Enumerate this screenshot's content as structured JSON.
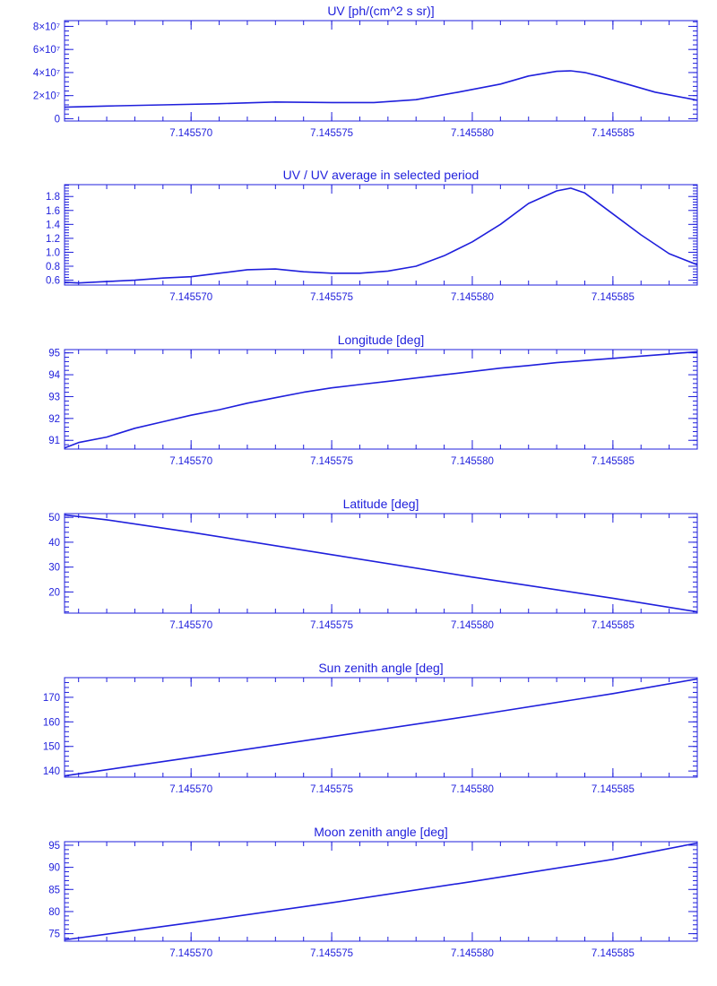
{
  "colors": {
    "line": "#1f1fdc",
    "axes": "#1f1fdc",
    "background": "#ffffff"
  },
  "chart_data": [
    {
      "type": "line",
      "title": "UV [ph/(cm^2 s sr)]",
      "xlim": [
        7.1455655,
        7.145588
      ],
      "x_ticks": [
        7.14557,
        7.145575,
        7.14558,
        7.145585
      ],
      "x_tick_labels": [
        "7.145570",
        "7.145575",
        "7.145580",
        "7.145585"
      ],
      "ylim": [
        -2000000.0,
        85000000.0
      ],
      "y_ticks": [
        0,
        20000000.0,
        40000000.0,
        60000000.0,
        80000000.0
      ],
      "y_tick_labels": [
        "0",
        "2×10⁷",
        "4×10⁷",
        "6×10⁷",
        "8×10⁷"
      ],
      "series": [
        {
          "x": [
            7.1455655,
            7.145567,
            7.145569,
            7.145571,
            7.145573,
            7.145575,
            7.1455765,
            7.145578,
            7.1455795,
            7.145581,
            7.145582,
            7.145583,
            7.1455835,
            7.145584,
            7.1455845,
            7.1455855,
            7.1455865,
            7.145588
          ],
          "y": [
            10000000.0,
            11000000.0,
            12000000.0,
            13000000.0,
            14500000.0,
            14000000.0,
            14000000.0,
            16500000.0,
            23000000.0,
            30000000.0,
            37000000.0,
            41000000.0,
            41500000.0,
            40000000.0,
            37000000.0,
            30000000.0,
            23000000.0,
            16000000.0
          ]
        }
      ]
    },
    {
      "type": "line",
      "title": "UV / UV average in selected period",
      "xlim": [
        7.1455655,
        7.145588
      ],
      "x_ticks": [
        7.14557,
        7.145575,
        7.14558,
        7.145585
      ],
      "x_tick_labels": [
        "7.145570",
        "7.145575",
        "7.145580",
        "7.145585"
      ],
      "ylim": [
        0.53,
        1.97
      ],
      "y_ticks": [
        0.6,
        0.8,
        1.0,
        1.2,
        1.4,
        1.6,
        1.8
      ],
      "y_tick_labels": [
        "0.6",
        "0.8",
        "1.0",
        "1.2",
        "1.4",
        "1.6",
        "1.8"
      ],
      "series": [
        {
          "x": [
            7.1455655,
            7.145566,
            7.145567,
            7.145568,
            7.145569,
            7.14557,
            7.145571,
            7.145572,
            7.145573,
            7.145574,
            7.145575,
            7.145576,
            7.145577,
            7.145578,
            7.145579,
            7.14558,
            7.145581,
            7.145582,
            7.145583,
            7.1455835,
            7.145584,
            7.145585,
            7.145586,
            7.145587,
            7.145588
          ],
          "y": [
            0.57,
            0.56,
            0.58,
            0.6,
            0.63,
            0.65,
            0.7,
            0.75,
            0.76,
            0.72,
            0.7,
            0.7,
            0.73,
            0.8,
            0.95,
            1.15,
            1.4,
            1.7,
            1.88,
            1.92,
            1.85,
            1.55,
            1.25,
            0.98,
            0.82
          ]
        }
      ]
    },
    {
      "type": "line",
      "title": "Longitude [deg]",
      "xlim": [
        7.1455655,
        7.145588
      ],
      "x_ticks": [
        7.14557,
        7.145575,
        7.14558,
        7.145585
      ],
      "x_tick_labels": [
        "7.145570",
        "7.145575",
        "7.145580",
        "7.145585"
      ],
      "ylim": [
        90.6,
        95.15
      ],
      "y_ticks": [
        91,
        92,
        93,
        94,
        95
      ],
      "y_tick_labels": [
        "91",
        "92",
        "93",
        "94",
        "95"
      ],
      "series": [
        {
          "x": [
            7.1455655,
            7.145566,
            7.145567,
            7.145568,
            7.145569,
            7.14557,
            7.145571,
            7.145572,
            7.145573,
            7.145574,
            7.145575,
            7.145576,
            7.145577,
            7.145578,
            7.145579,
            7.14558,
            7.145581,
            7.145582,
            7.145583,
            7.145584,
            7.145585,
            7.145586,
            7.145587,
            7.145588
          ],
          "y": [
            90.65,
            90.9,
            91.15,
            91.55,
            91.85,
            92.15,
            92.4,
            92.7,
            92.95,
            93.2,
            93.4,
            93.55,
            93.7,
            93.85,
            94.0,
            94.15,
            94.3,
            94.42,
            94.55,
            94.65,
            94.75,
            94.85,
            94.95,
            95.05
          ]
        }
      ]
    },
    {
      "type": "line",
      "title": "Latitude [deg]",
      "xlim": [
        7.1455655,
        7.145588
      ],
      "x_ticks": [
        7.14557,
        7.145575,
        7.14558,
        7.145585
      ],
      "x_tick_labels": [
        "7.145570",
        "7.145575",
        "7.145580",
        "7.145585"
      ],
      "ylim": [
        11.5,
        51.5
      ],
      "y_ticks": [
        20,
        30,
        40,
        50
      ],
      "y_tick_labels": [
        "20",
        "30",
        "40",
        "50"
      ],
      "series": [
        {
          "x": [
            7.1455655,
            7.145567,
            7.14557,
            7.145575,
            7.14558,
            7.145585,
            7.145588
          ],
          "y": [
            51.0,
            49.0,
            44.0,
            35.0,
            26.0,
            17.5,
            12.0
          ]
        }
      ]
    },
    {
      "type": "line",
      "title": "Sun zenith angle [deg]",
      "xlim": [
        7.1455655,
        7.145588
      ],
      "x_ticks": [
        7.14557,
        7.145575,
        7.14558,
        7.145585
      ],
      "x_tick_labels": [
        "7.145570",
        "7.145575",
        "7.145580",
        "7.145585"
      ],
      "ylim": [
        137.5,
        178
      ],
      "y_ticks": [
        140,
        150,
        160,
        170
      ],
      "y_tick_labels": [
        "140",
        "150",
        "160",
        "170"
      ],
      "series": [
        {
          "x": [
            7.1455655,
            7.14557,
            7.145575,
            7.14558,
            7.145585,
            7.145588
          ],
          "y": [
            138.0,
            145.5,
            154.0,
            162.5,
            171.5,
            177.5
          ]
        }
      ]
    },
    {
      "type": "line",
      "title": "Moon zenith angle [deg]",
      "xlim": [
        7.1455655,
        7.145588
      ],
      "x_ticks": [
        7.14557,
        7.145575,
        7.14558,
        7.145585
      ],
      "x_tick_labels": [
        "7.145570",
        "7.145575",
        "7.145580",
        "7.145585"
      ],
      "ylim": [
        73.3,
        95.8
      ],
      "y_ticks": [
        75,
        80,
        85,
        90,
        95
      ],
      "y_tick_labels": [
        "75",
        "80",
        "85",
        "90",
        "95"
      ],
      "series": [
        {
          "x": [
            7.1455655,
            7.14557,
            7.145575,
            7.14558,
            7.145585,
            7.145588
          ],
          "y": [
            73.6,
            77.5,
            82.0,
            86.8,
            91.8,
            95.5
          ]
        }
      ]
    }
  ]
}
